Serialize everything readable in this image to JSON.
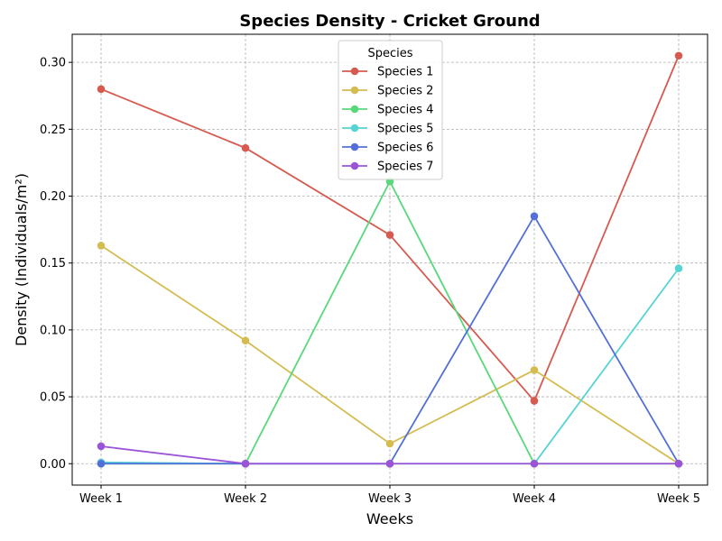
{
  "chart_data": {
    "type": "line",
    "title": "Species Density - Cricket Ground",
    "xlabel": "Weeks",
    "ylabel": "Density (Individuals/m²)",
    "categories": [
      "Week 1",
      "Week 2",
      "Week 3",
      "Week 4",
      "Week 5"
    ],
    "ylim": [
      -0.016,
      0.321
    ],
    "yticks": [
      0.0,
      0.05,
      0.1,
      0.15,
      0.2,
      0.25,
      0.3
    ],
    "ytick_labels": [
      "0.00",
      "0.05",
      "0.10",
      "0.15",
      "0.20",
      "0.25",
      "0.30"
    ],
    "grid": true,
    "legend": {
      "title": "Species",
      "placement": "top-center"
    },
    "series": [
      {
        "name": "Species 1",
        "color": "#d65a4f",
        "values": [
          0.28,
          0.236,
          0.171,
          0.047,
          0.305
        ]
      },
      {
        "name": "Species 2",
        "color": "#d4bc50",
        "values": [
          0.163,
          0.092,
          0.015,
          0.07,
          0.0
        ]
      },
      {
        "name": "Species 4",
        "color": "#57d97b",
        "values": [
          0.0,
          0.0,
          0.211,
          0.0,
          0.0
        ]
      },
      {
        "name": "Species 5",
        "color": "#56d3d3",
        "values": [
          0.001,
          0.0,
          0.0,
          0.0,
          0.146
        ]
      },
      {
        "name": "Species 6",
        "color": "#5470d8",
        "values": [
          0.0,
          0.0,
          0.0,
          0.185,
          0.0
        ]
      },
      {
        "name": "Species 7",
        "color": "#9b54d8",
        "values": [
          0.013,
          0.0,
          0.0,
          0.0,
          0.0
        ]
      }
    ]
  }
}
